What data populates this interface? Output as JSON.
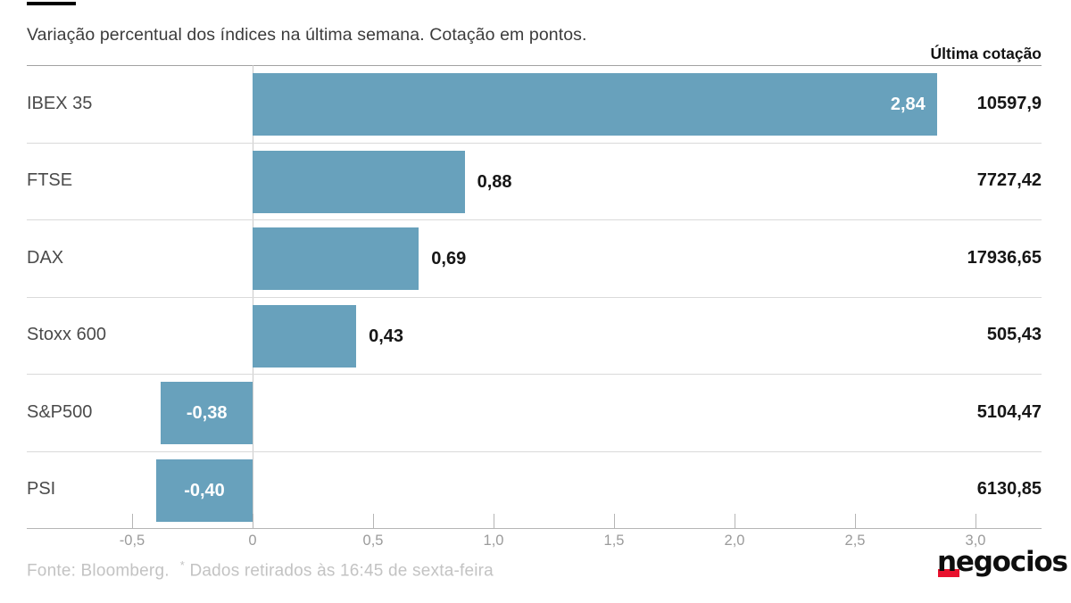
{
  "header": {
    "title": "Variação percentual dos índices na última semana. Cotação em pontos.",
    "right_label": "Última cotação"
  },
  "chart_data": {
    "type": "bar",
    "orientation": "horizontal",
    "title": "Variação percentual dos índices na última semana. Cotação em pontos.",
    "categories": [
      "IBEX 35",
      "FTSE",
      "DAX",
      "Stoxx 600",
      "S&P500",
      "PSI"
    ],
    "values": [
      2.84,
      0.88,
      0.69,
      0.43,
      -0.38,
      -0.4
    ],
    "value_labels": [
      "2,84",
      "0,88",
      "0,69",
      "0,43",
      "-0,38",
      "-0,40"
    ],
    "last_quote_header": "Última cotação",
    "last_quotes": [
      "10597,9",
      "7727,42",
      "17936,65",
      "505,43",
      "5104,47",
      "6130,85"
    ],
    "x_ticks": [
      -0.5,
      0,
      0.5,
      1.0,
      1.5,
      2.0,
      2.5,
      3.0
    ],
    "x_tick_labels": [
      "-0,5",
      "0",
      "0,5",
      "1,0",
      "1,5",
      "2,0",
      "2,5",
      "3,0"
    ],
    "xlim": [
      -0.94,
      3.27
    ],
    "grid": false,
    "legend": "none",
    "bar_color": "#68a1bc",
    "value_label_color_inside": "#ffffff",
    "value_label_color_outside": "#161616"
  },
  "footer": {
    "source": "Fonte: Bloomberg.",
    "note_star": "*",
    "note_text": "Dados retirados às 16:45 de sexta-feira",
    "logo_text": "negocios",
    "logo_accent_color": "#e8112d"
  }
}
